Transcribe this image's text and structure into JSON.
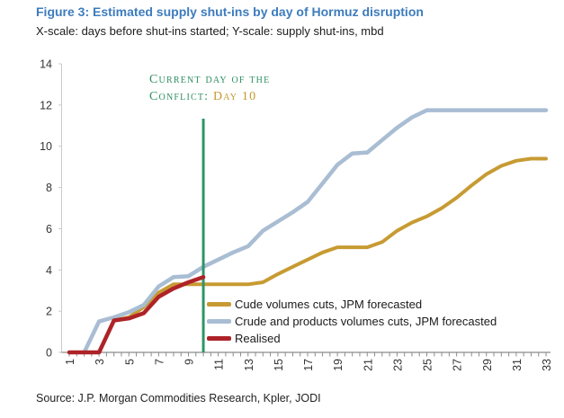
{
  "header": {
    "title": "Figure 3: Estimated supply shut-ins by day of Hormuz disruption",
    "subtitle": "X-scale: days before shut-ins started; Y-scale: supply shut-ins, mbd"
  },
  "source": "Source: J.P. Morgan Commodities Research, Kpler, JODI",
  "annotation": {
    "line1": "Current day of the",
    "line2_prefix": "Conflict: ",
    "line2_highlight": "Day 10"
  },
  "colors": {
    "title_blue": "#3D7CBE",
    "axis_gray": "#8C8C8C",
    "y_axis_light": "#C9C9C9",
    "tick_label": "#333333",
    "gold": "#C79B33",
    "steel_blue": "#A9BDD3",
    "red": "#AE2328",
    "green": "#2E9566"
  },
  "chart_data": {
    "type": "line",
    "title": "Figure 3: Estimated supply shut-ins by day of Hormuz disruption",
    "xlabel": "days before shut-ins started",
    "ylabel": "supply shut-ins, mbd",
    "xlim": [
      1,
      33
    ],
    "ylim": [
      0,
      14
    ],
    "x_ticks": [
      1,
      3,
      5,
      7,
      9,
      11,
      13,
      15,
      17,
      19,
      21,
      23,
      25,
      27,
      29,
      31,
      33
    ],
    "y_ticks": [
      0,
      2,
      4,
      6,
      8,
      10,
      12,
      14
    ],
    "grid": false,
    "legend_position": "inside-bottom-center",
    "vline": {
      "x": 10,
      "y_top": 11.34,
      "color": "#2E9566",
      "label": "Current day of the Conflict: Day 10"
    },
    "series": [
      {
        "name": "Cude volumes cuts, JPM forecasted",
        "color": "#C79B33",
        "width": 4,
        "start_day": 1,
        "values": [
          0,
          0,
          0,
          1.55,
          1.7,
          2.2,
          2.9,
          3.3,
          3.3,
          3.3,
          3.3,
          3.3,
          3.3,
          3.4,
          3.8,
          4.15,
          4.5,
          4.85,
          5.1,
          5.1,
          5.1,
          5.35,
          5.9,
          6.3,
          6.6,
          7.0,
          7.5,
          8.1,
          8.65,
          9.05,
          9.3,
          9.4,
          9.4
        ]
      },
      {
        "name": "Crude and products volumes cuts, JPM forecasted",
        "color": "#A9BDD3",
        "width": 4.5,
        "start_day": 2,
        "values": [
          0,
          1.5,
          1.7,
          1.95,
          2.3,
          3.2,
          3.65,
          3.7,
          4.15,
          4.5,
          4.85,
          5.15,
          5.9,
          6.35,
          6.8,
          7.3,
          8.2,
          9.1,
          9.65,
          9.7,
          10.3,
          10.9,
          11.4,
          11.75,
          11.75,
          11.75,
          11.75,
          11.75,
          11.75,
          11.75,
          11.75,
          11.75
        ]
      },
      {
        "name": "Realised",
        "color": "#AE2328",
        "width": 4.5,
        "start_day": 1,
        "values": [
          0,
          0,
          0,
          1.55,
          1.65,
          1.9,
          2.7,
          3.1,
          3.4,
          3.65
        ]
      }
    ]
  }
}
